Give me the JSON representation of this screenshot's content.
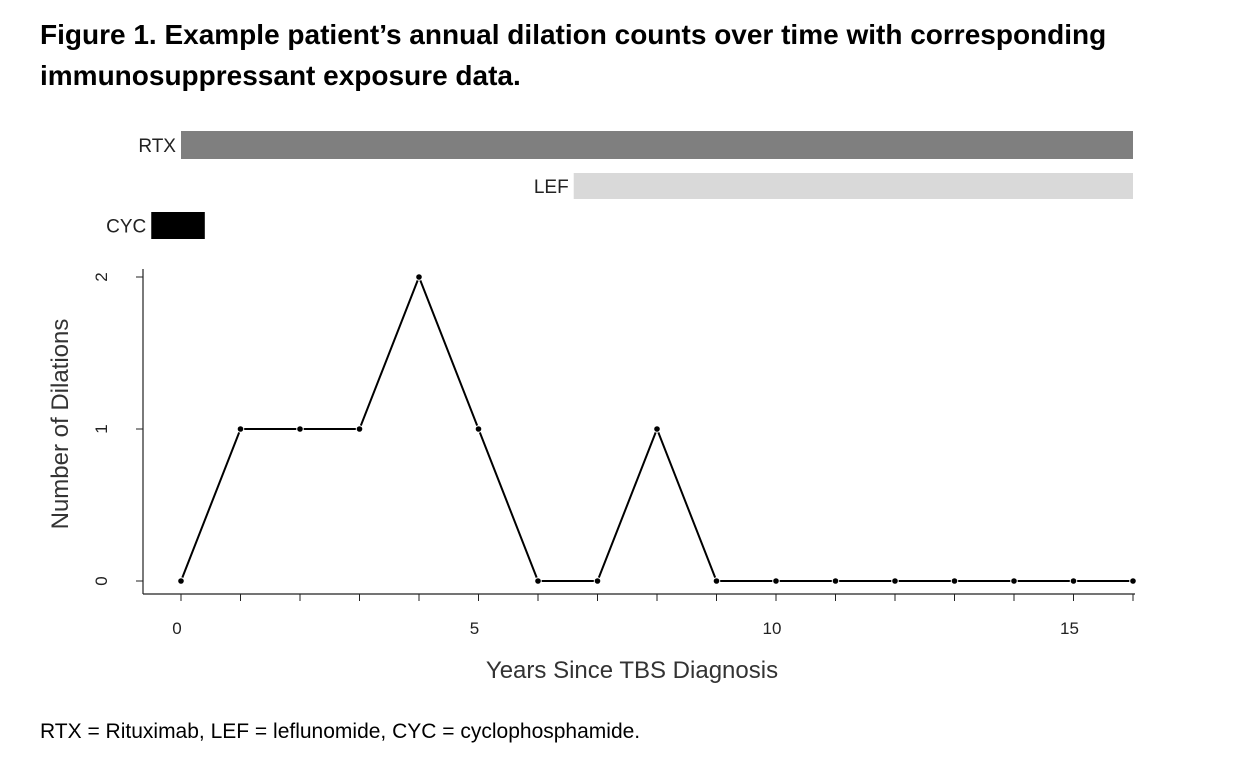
{
  "figure": {
    "title_line1": "Figure 1. Example patient’s annual dilation counts over time with corresponding",
    "title_line2": "immunosuppressant exposure data.",
    "caption": "RTX = Rituximab, LEF = leflunomide, CYC = cyclophosphamide."
  },
  "chart_data": {
    "type": "line",
    "xlabel": "Years Since TBS Diagnosis",
    "ylabel": "Number of Dilations",
    "xlim": [
      0,
      16
    ],
    "ylim": [
      0,
      2
    ],
    "x_ticks_labeled": [
      0,
      5,
      10,
      15
    ],
    "y_ticks_labeled": [
      0,
      1,
      2
    ],
    "grid": false,
    "x": [
      0,
      1,
      2,
      3,
      4,
      5,
      6,
      7,
      8,
      9,
      10,
      11,
      12,
      13,
      14,
      15,
      16
    ],
    "y": [
      0,
      1,
      1,
      1,
      2,
      1,
      0,
      0,
      1,
      0,
      0,
      0,
      0,
      0,
      0,
      0,
      0
    ],
    "line_color": "#000000",
    "exposures": [
      {
        "label": "RTX",
        "start": 0,
        "end": 16,
        "color": "#7f7f7f"
      },
      {
        "label": "LEF",
        "start": 6.6,
        "end": 16,
        "color": "#d9d9d9"
      },
      {
        "label": "CYC",
        "start": -0.5,
        "end": 0.4,
        "color": "#000000"
      }
    ]
  }
}
